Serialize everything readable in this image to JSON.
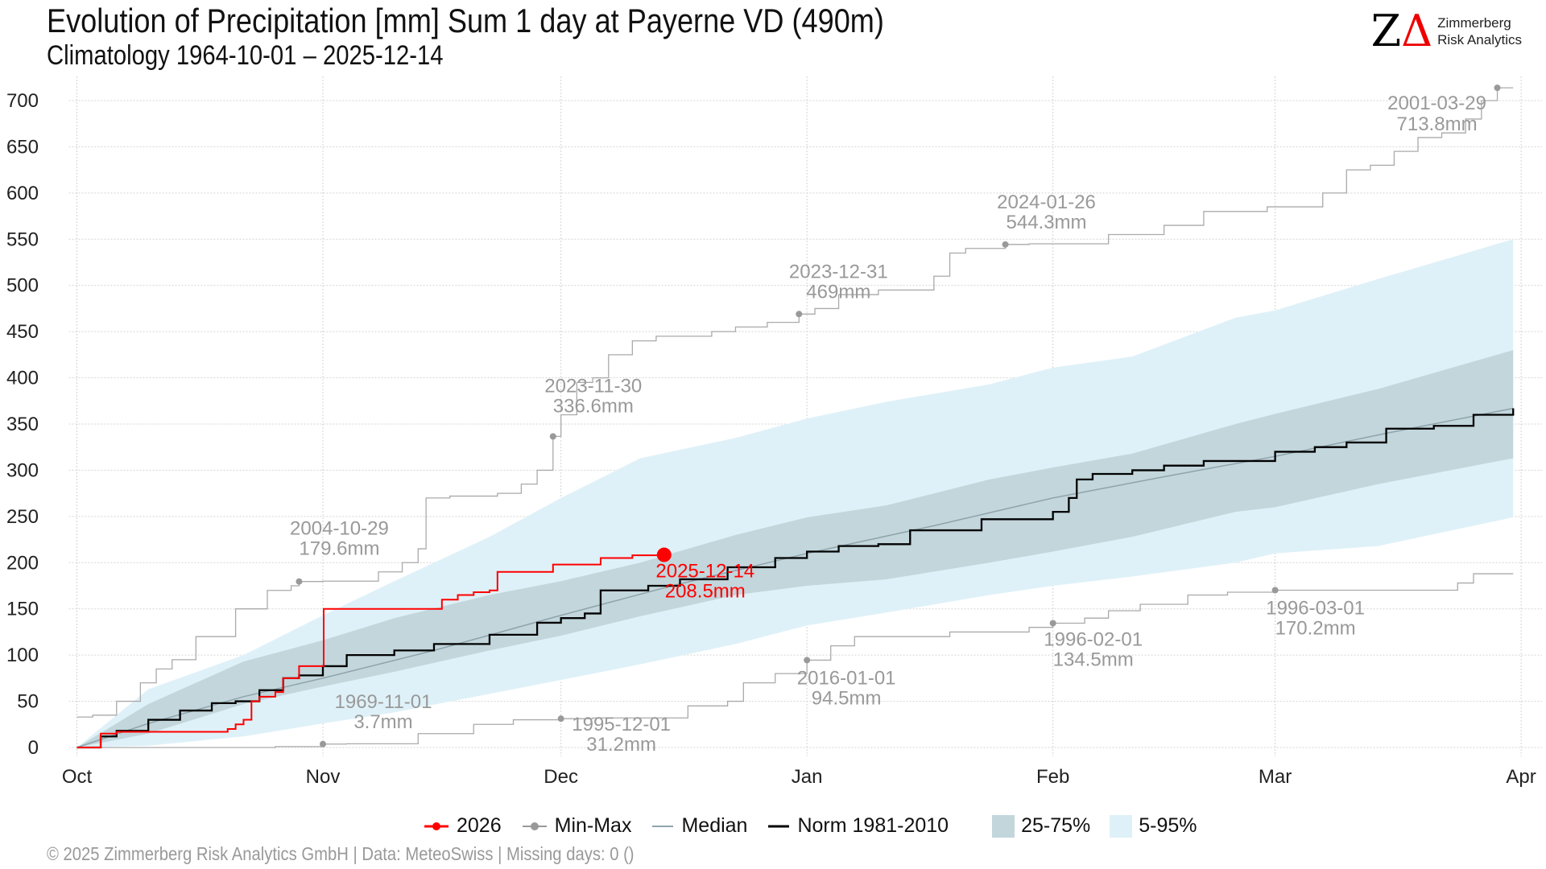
{
  "header": {
    "title": "Evolution of Precipitation [mm] Sum 1 day at Payerne  VD (490m)",
    "subtitle": "Climatology 1964-10-01 – 2025-12-14"
  },
  "logo": {
    "mark": "ZΔ",
    "line1": "Zimmerberg",
    "line2": "Risk Analytics"
  },
  "footer": "©  2025 Zimmerberg Risk Analytics GmbH | Data: MeteoSwiss | Missing days: 0 ()",
  "colors": {
    "current": "#ff0000",
    "minmax": "#999999",
    "median": "#8fa3ab",
    "norm": "#000000",
    "iqr": "#c2d6dc",
    "p5_95": "#dff1f8"
  },
  "chart_data": {
    "type": "line",
    "title": "Evolution of Precipitation [mm] Sum 1 day at Payerne  VD (490m)",
    "xlabel": "",
    "ylabel": "",
    "x_unit": "days since Oct 1",
    "xlim": [
      0,
      182
    ],
    "ylim": [
      0,
      720
    ],
    "yticks": [
      0,
      50,
      100,
      150,
      200,
      250,
      300,
      350,
      400,
      450,
      500,
      550,
      600,
      650,
      700
    ],
    "xticks": [
      {
        "day": 0,
        "label": "Oct"
      },
      {
        "day": 31,
        "label": "Nov"
      },
      {
        "day": 61,
        "label": "Dec"
      },
      {
        "day": 92,
        "label": "Jan"
      },
      {
        "day": 123,
        "label": "Feb"
      },
      {
        "day": 151,
        "label": "Mar"
      },
      {
        "day": 182,
        "label": "Apr"
      }
    ],
    "legend": {
      "placement": "bottom",
      "items": [
        "2026",
        "Min-Max",
        "Median",
        "Norm 1981-2010",
        "25-75%",
        "5-95%"
      ]
    },
    "band_x": [
      0,
      9,
      21,
      31,
      40,
      52,
      61,
      71,
      83,
      92,
      102,
      115,
      123,
      133,
      146,
      151,
      164,
      181
    ],
    "p95": [
      0,
      63,
      100,
      143,
      180,
      228,
      270,
      313,
      335,
      356,
      374,
      393,
      411,
      423,
      465,
      473,
      507,
      550
    ],
    "p5": [
      0,
      2,
      12,
      26,
      38,
      58,
      73,
      90,
      112,
      132,
      146,
      165,
      175,
      185,
      200,
      210,
      218,
      249
    ],
    "p75": [
      0,
      47,
      93,
      116,
      140,
      165,
      180,
      200,
      230,
      249,
      262,
      290,
      303,
      318,
      350,
      361,
      388,
      430
    ],
    "p25": [
      0,
      15,
      47,
      66,
      82,
      105,
      121,
      142,
      165,
      175,
      182,
      200,
      212,
      228,
      255,
      260,
      285,
      313
    ],
    "median": {
      "x": [
        0,
        9,
        21,
        31,
        45,
        61,
        75,
        92,
        108,
        123,
        137,
        151,
        165,
        181
      ],
      "y": [
        0,
        26,
        55,
        75,
        105,
        143,
        175,
        210,
        240,
        270,
        293,
        315,
        340,
        367
      ]
    },
    "norm": {
      "x": [
        0,
        3,
        5,
        9,
        13,
        17,
        20,
        23,
        26,
        28,
        31,
        34,
        40,
        45,
        52,
        58,
        61,
        64,
        66,
        72,
        76,
        82,
        88,
        92,
        96,
        101,
        105,
        110,
        114,
        123,
        125,
        126,
        128,
        133,
        137,
        142,
        151,
        156,
        160,
        165,
        171,
        176,
        181
      ],
      "y": [
        0,
        12,
        18,
        30,
        40,
        48,
        50,
        62,
        75,
        78,
        88,
        100,
        105,
        112,
        122,
        135,
        140,
        145,
        170,
        175,
        182,
        195,
        205,
        212,
        218,
        220,
        235,
        235,
        247,
        255,
        270,
        290,
        296,
        300,
        305,
        310,
        320,
        325,
        330,
        345,
        348,
        360,
        367
      ]
    },
    "max": {
      "x": [
        0,
        2,
        5,
        8,
        10,
        12,
        15,
        20,
        24,
        27,
        28,
        31,
        38,
        41,
        43,
        44,
        47,
        53,
        56,
        58,
        60,
        61,
        63,
        65,
        67,
        70,
        73,
        80,
        83,
        87,
        91,
        93,
        96,
        101,
        105,
        108,
        110,
        112,
        117,
        120,
        130,
        137,
        142,
        150,
        155,
        157,
        160,
        163,
        166,
        169,
        172,
        175,
        177,
        179,
        181
      ],
      "y": [
        33,
        35,
        50,
        70,
        85,
        95,
        120,
        150,
        170,
        175,
        179.6,
        180,
        190,
        200,
        215,
        270,
        272,
        275,
        285,
        300,
        336.6,
        360,
        395,
        400,
        425,
        440,
        445,
        450,
        455,
        460,
        469,
        475,
        490,
        495,
        495,
        510,
        535,
        540,
        544.3,
        545,
        555,
        565,
        580,
        585,
        585,
        600,
        625,
        630,
        645,
        660,
        665,
        680,
        700,
        713.8,
        713.8
      ]
    },
    "min": {
      "x": [
        0,
        25,
        31,
        34,
        43,
        50,
        55,
        61,
        65,
        77,
        82,
        84,
        88,
        92,
        95,
        98,
        110,
        120,
        123,
        127,
        130,
        134,
        140,
        145,
        151,
        160,
        170,
        174,
        176,
        181
      ],
      "y": [
        0,
        1,
        3.7,
        4,
        15,
        25,
        30,
        31.2,
        32,
        45,
        50,
        70,
        80,
        94.5,
        110,
        120,
        125,
        130,
        134.5,
        140,
        148,
        155,
        165,
        168,
        170.2,
        170.2,
        170.2,
        178,
        188,
        188
      ]
    },
    "current": {
      "name": "2026",
      "x": [
        0,
        3,
        5,
        8,
        18,
        19,
        20,
        21,
        22,
        23,
        25,
        26,
        28,
        31,
        31.1,
        36,
        45,
        46,
        48,
        50,
        52,
        53,
        60,
        66,
        70,
        74
      ],
      "y": [
        0,
        15,
        17,
        17,
        17,
        20,
        25,
        30,
        50,
        55,
        60,
        75,
        88,
        88,
        150,
        150,
        150,
        160,
        165,
        168,
        170,
        190,
        198,
        205,
        208,
        208.5
      ]
    },
    "annotations": [
      {
        "day": 28,
        "value": 179.6,
        "date": "2004-10-29",
        "text": "179.6mm",
        "series": "max"
      },
      {
        "day": 60,
        "value": 336.6,
        "date": "2023-11-30",
        "text": "336.6mm",
        "series": "max"
      },
      {
        "day": 91,
        "value": 469,
        "date": "2023-12-31",
        "text": "469mm",
        "series": "max"
      },
      {
        "day": 117,
        "value": 544.3,
        "date": "2024-01-26",
        "text": "544.3mm",
        "series": "max"
      },
      {
        "day": 179,
        "value": 713.8,
        "date": "2001-03-29",
        "text": "713.8mm",
        "series": "max"
      },
      {
        "day": 31,
        "value": 3.7,
        "date": "1969-11-01",
        "text": "3.7mm",
        "series": "min"
      },
      {
        "day": 61,
        "value": 31.2,
        "date": "1995-12-01",
        "text": "31.2mm",
        "series": "min"
      },
      {
        "day": 92,
        "value": 94.5,
        "date": "2016-01-01",
        "text": "94.5mm",
        "series": "min"
      },
      {
        "day": 123,
        "value": 134.5,
        "date": "1996-02-01",
        "text": "134.5mm",
        "series": "min"
      },
      {
        "day": 151,
        "value": 170.2,
        "date": "1996-03-01",
        "text": "170.2mm",
        "series": "min"
      },
      {
        "day": 74,
        "value": 208.5,
        "date": "2025-12-14",
        "text": "208.5mm",
        "series": "current"
      }
    ]
  }
}
